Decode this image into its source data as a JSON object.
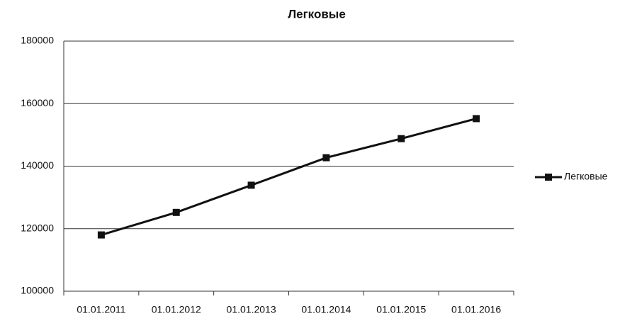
{
  "chart_data": {
    "type": "line",
    "title": "Легковые",
    "categories": [
      "01.01.2011",
      "01.01.2012",
      "01.01.2013",
      "01.01.2014",
      "01.01.2015",
      "01.01.2016"
    ],
    "series": [
      {
        "name": "Легковые",
        "color": "#111111",
        "values": [
          118000,
          125200,
          133900,
          142700,
          148800,
          155200
        ]
      }
    ],
    "ylim": [
      100000,
      180000
    ],
    "yticks": [
      100000,
      120000,
      140000,
      160000,
      180000
    ],
    "grid": true,
    "legend": "right"
  }
}
